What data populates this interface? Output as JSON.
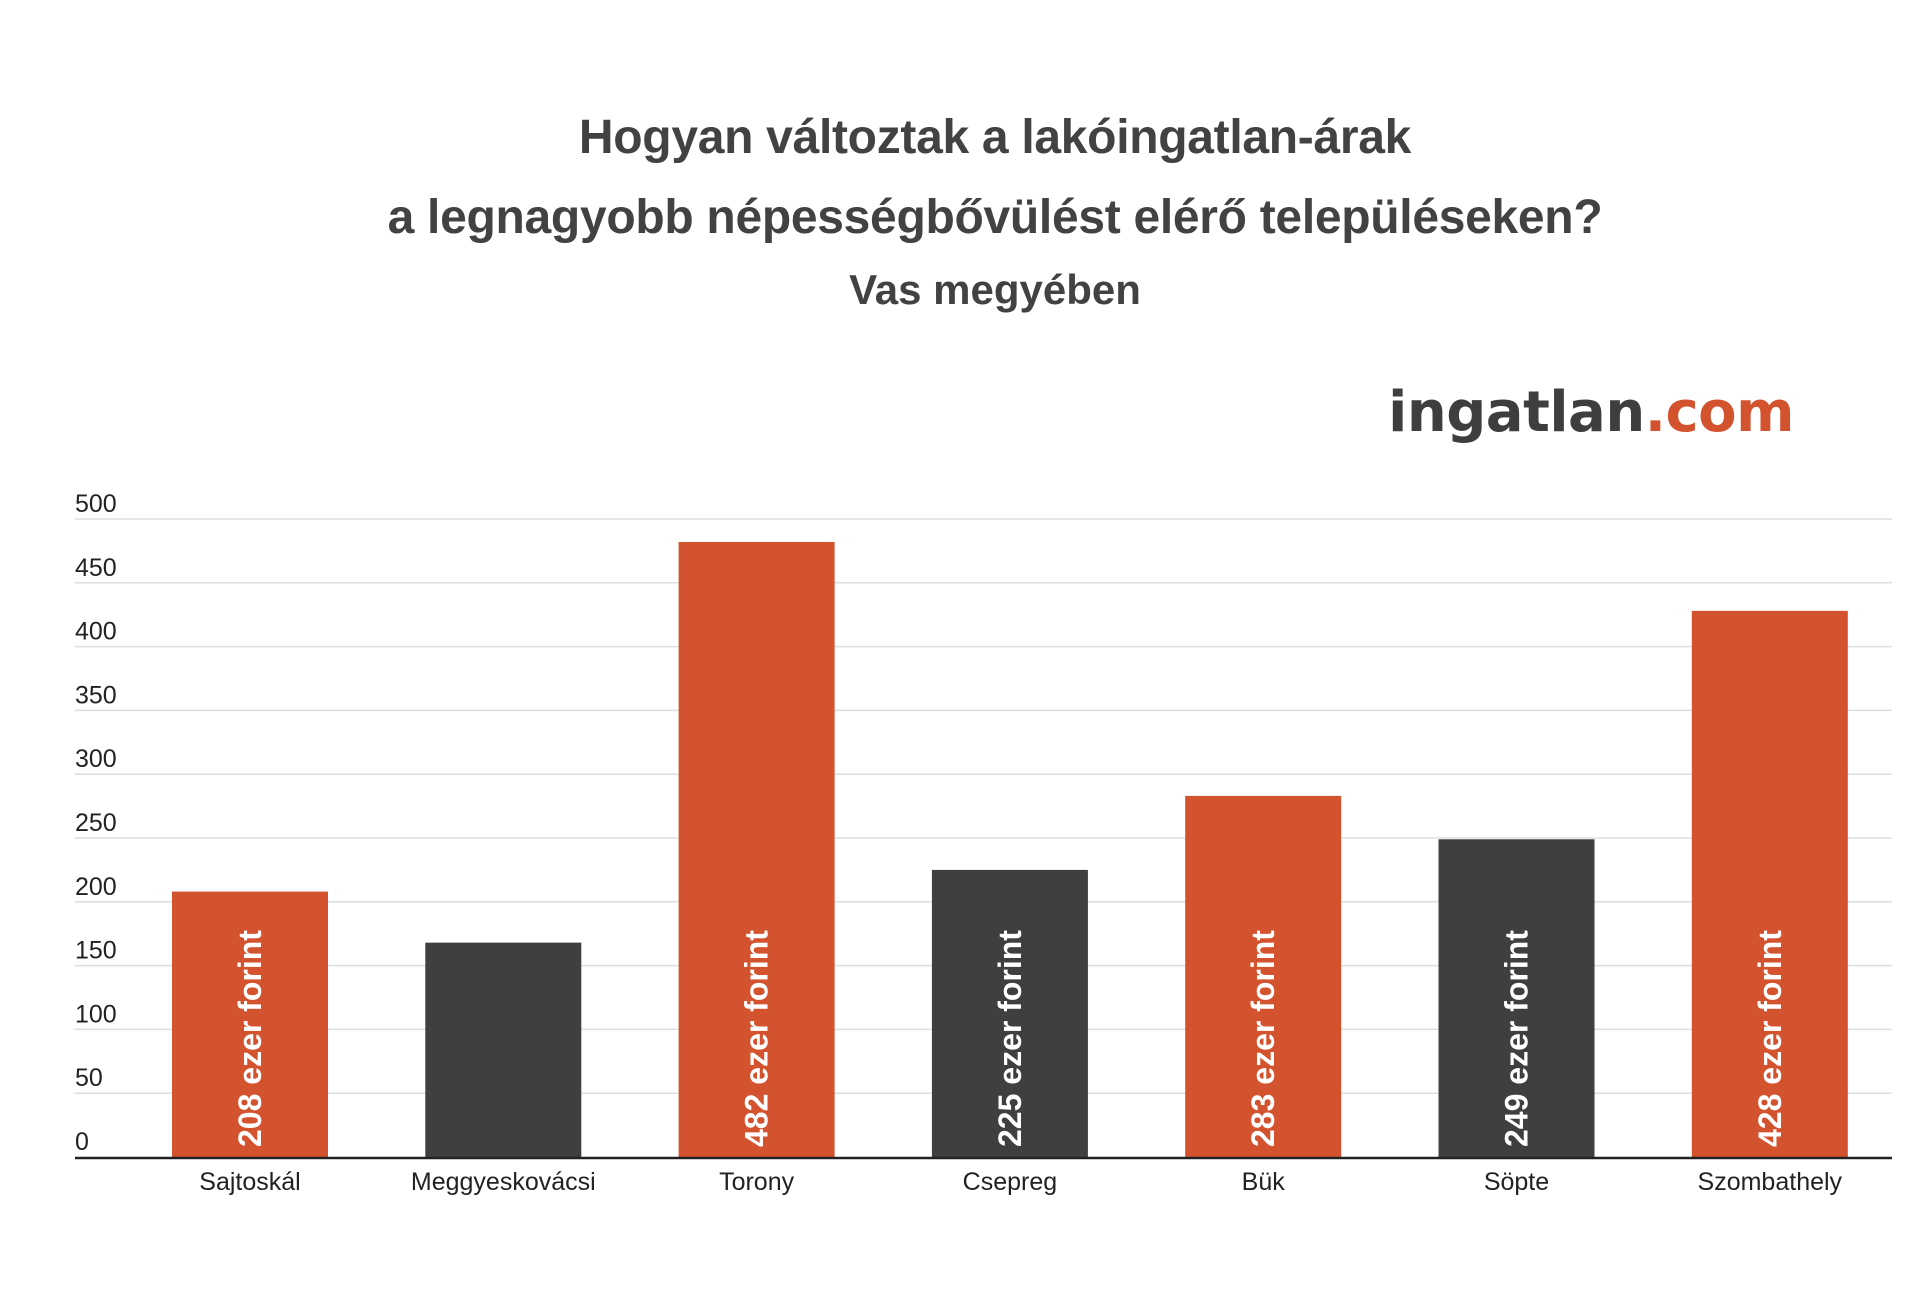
{
  "title_lines": [
    "Hogyan változtak a lakóingatlan-árak",
    "a legnagyobb népességbővülést elérő településeken?"
  ],
  "subtitle": "Vas megyében",
  "logo": {
    "main": "ingatlan",
    "suffix": ".com"
  },
  "colors": {
    "orange": "#d4532f",
    "dark": "#3f3f3f",
    "grid": "#dddddd",
    "axis": "#222222",
    "text": "#424242"
  },
  "chart_data": {
    "type": "bar",
    "title": "",
    "xlabel": "",
    "ylabel": "",
    "ylim": [
      0,
      500
    ],
    "yticks": [
      0,
      50,
      100,
      150,
      200,
      250,
      300,
      350,
      400,
      450,
      500
    ],
    "grid": true,
    "categories": [
      "Sajtoskál",
      "Meggyeskovácsi",
      "Torony",
      "Csepreg",
      "Bük",
      "Söpte",
      "Szombathely"
    ],
    "values": [
      208,
      168,
      482,
      225,
      283,
      249,
      428
    ],
    "bar_colors": [
      "orange",
      "dark",
      "orange",
      "dark",
      "orange",
      "dark",
      "orange"
    ],
    "data_labels": [
      "208 ezer forint",
      "",
      "482 ezer forint",
      "225 ezer forint",
      "283 ezer forint",
      "249 ezer forint",
      "428 ezer forint"
    ]
  }
}
